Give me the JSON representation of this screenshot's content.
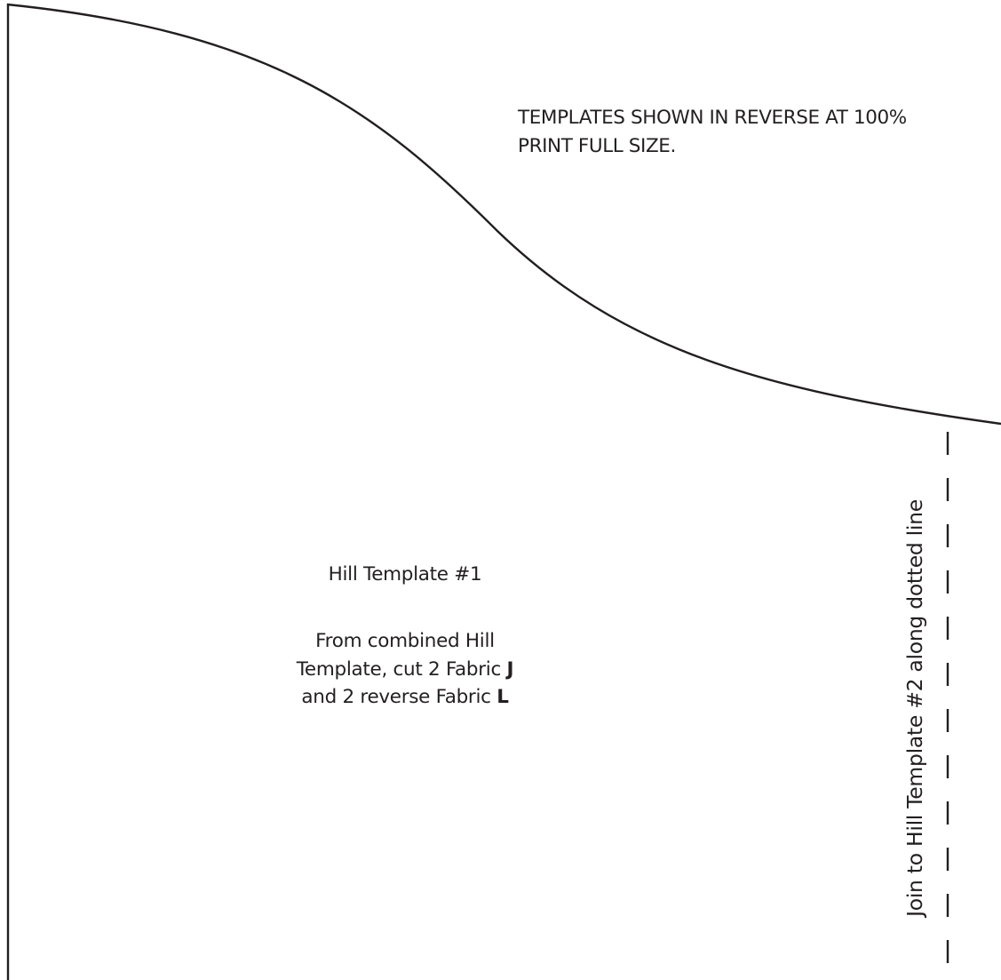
{
  "notice": {
    "line1": "TEMPLATES SHOWN IN REVERSE AT 100%",
    "line2": "PRINT FULL SIZE."
  },
  "template": {
    "title": "Hill Template #1",
    "instructions": {
      "line1": "From combined Hill",
      "line2_prefix": "Template, cut 2 Fabric ",
      "line2_fabric": "J",
      "line3_prefix": "and 2 reverse Fabric ",
      "line3_fabric": "L"
    }
  },
  "join_instruction": "Join to Hill Template #2 along dotted line",
  "colors": {
    "ink": "#231f20",
    "paper": "#ffffff"
  }
}
